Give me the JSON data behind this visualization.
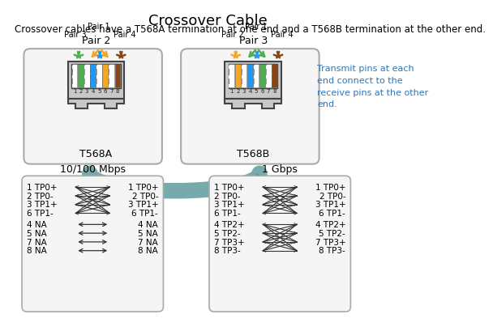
{
  "title": "Crossover Cable",
  "subtitle": "Crossover cables have a T568A termination at one end and a T568B termination at the other end.",
  "side_note": "Transmit pins at each\nend connect to the\nreceive pins at the other\nend.",
  "side_note_color": "#2E75B6",
  "left_label": "T568A",
  "right_label": "T568B",
  "left_pair_top": "Pair 2",
  "right_pair_top": "Pair 3",
  "left_sub_pairs": [
    "Pair 3",
    "Pair 1",
    "Pair 4"
  ],
  "right_sub_pairs": [
    "Pair 2",
    "Pair 1",
    "Pair 4"
  ],
  "left_pair_colors": [
    "#4CAF50",
    "#F5A623",
    "#2196F3",
    "#8B4513"
  ],
  "right_pair_colors": [
    "#F5A623",
    "#4CAF50",
    "#2196F3",
    "#8B4513"
  ],
  "t568a_pin_colors": [
    "#FFFFFF",
    "#4CAF50",
    "#FFFFFF",
    "#2196F3",
    "#FFFFFF",
    "#F5A623",
    "#FFFFFF",
    "#8B4513"
  ],
  "t568a_pin_stripe": [
    true,
    false,
    true,
    false,
    true,
    false,
    true,
    false
  ],
  "t568b_pin_colors": [
    "#FFFFFF",
    "#F5A623",
    "#FFFFFF",
    "#2196F3",
    "#FFFFFF",
    "#4CAF50",
    "#FFFFFF",
    "#8B4513"
  ],
  "t568b_pin_stripe": [
    true,
    false,
    true,
    false,
    true,
    false,
    true,
    false
  ],
  "box_bg": "#F0F0F0",
  "box_border": "#999999",
  "title_fontsize": 13,
  "subtitle_fontsize": 8.5,
  "label_fontsize": 9,
  "small_fontsize": 8,
  "bg_color": "#FFFFFF",
  "left_box_title": "10/100 Mbps",
  "right_box_title": "1 Gbps",
  "left_top_rows_l": [
    "1 TP0+",
    "2 TP0-",
    "3 TP1+",
    "6 TP1-"
  ],
  "left_top_rows_r": [
    "1 TP0+",
    "2 TP0-",
    "3 TP1+",
    "6 TP1-"
  ],
  "left_bot_rows_l": [
    "4 NA",
    "5 NA",
    "7 NA",
    "8 NA"
  ],
  "left_bot_rows_r": [
    "4 NA",
    "5 NA",
    "7 NA",
    "8 NA"
  ],
  "right_top_rows_l": [
    "1 TP0+",
    "2 TP0-",
    "3 TP1+",
    "6 TP1-"
  ],
  "right_top_rows_r": [
    "1 TP0+",
    "2 TP0-",
    "3 TP1+",
    "6 TP1-"
  ],
  "right_bot_rows_l": [
    "4 TP2+",
    "5 TP2-",
    "7 TP3+",
    "8 TP3-"
  ],
  "right_bot_rows_r": [
    "4 TP2+",
    "5 TP2-",
    "7 TP3+",
    "8 TP3-"
  ],
  "arrow_color": "#4A8F8F",
  "connector_fill": "#C8C8C8",
  "connector_border": "#444444"
}
